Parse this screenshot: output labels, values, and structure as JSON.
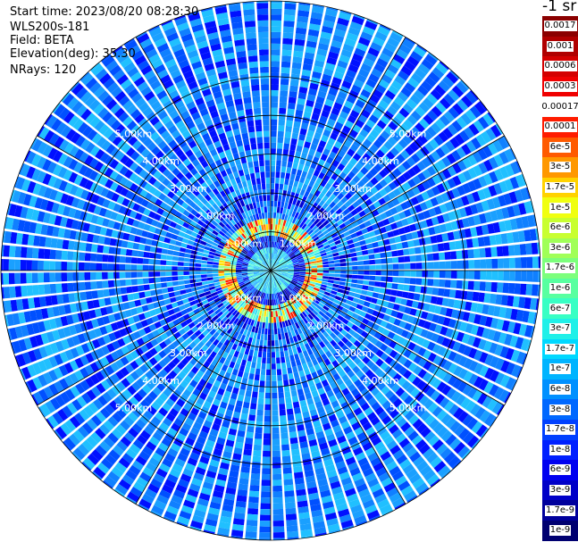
{
  "header": {
    "start_time": "Start time: 2023/08/20 08:28:30",
    "instrument": "WLS200s-181",
    "field": "Field: BETA",
    "elevation": "Elevation(deg): 35.30",
    "nrays": "NRays: 120"
  },
  "colorbar": {
    "unit": "-1 sr",
    "labels": [
      "0.0017",
      "0.001",
      "0.0006",
      "0.0003",
      "0.00017",
      "0.0001",
      "6e-5",
      "3e-5",
      "1.7e-5",
      "1e-5",
      "6e-6",
      "3e-6",
      "1.7e-6",
      "1e-6",
      "6e-7",
      "3e-7",
      "1.7e-7",
      "1e-7",
      "6e-8",
      "3e-8",
      "1.7e-8",
      "1e-8",
      "6e-9",
      "3e-9",
      "1.7e-9",
      "1e-9"
    ],
    "colors": [
      "#8b0000",
      "#b00000",
      "#d40000",
      "#f00000",
      "#ffffff",
      "#ff1c00",
      "#ff5a00",
      "#ff9800",
      "#ffd200",
      "#f0ff10",
      "#c8ff30",
      "#a0ff58",
      "#7cff7c",
      "#58ffa0",
      "#38ffc4",
      "#20f0e8",
      "#00d8ff",
      "#00b4ff",
      "#0090ff",
      "#0068ff",
      "#0040ff",
      "#0020ff",
      "#0000f0",
      "#0000c8",
      "#00009c",
      "#000070"
    ]
  },
  "chart_data": {
    "type": "heatmap",
    "projection": "polar PPI",
    "field": "BETA",
    "nrays": 120,
    "range_rings_km": [
      1.0,
      2.0,
      3.0,
      4.0,
      5.0
    ],
    "ring_label_text": [
      "1.00km",
      "2.00km",
      "3.00km",
      "4.00km",
      "5.00km"
    ],
    "max_range_km": 6.95,
    "angular_grid_deg": 30,
    "colorscale": "log",
    "range_min": 1e-09,
    "range_max": 0.0017,
    "typical_far_field": 5e-08,
    "near_ring_range_km": [
      0.9,
      1.4
    ]
  }
}
